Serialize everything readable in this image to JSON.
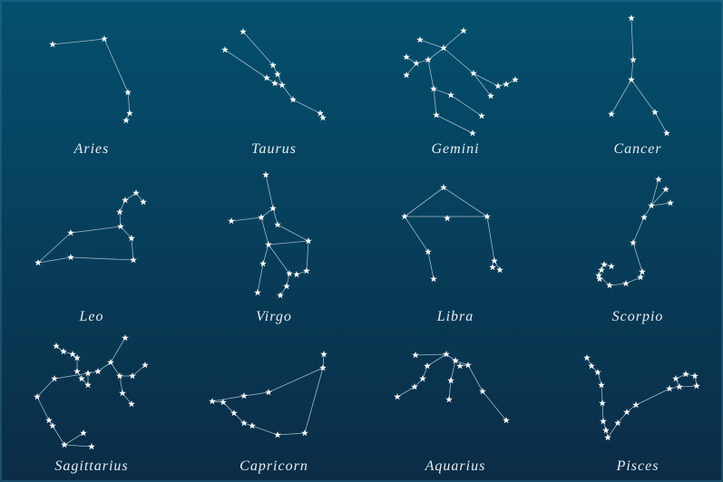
{
  "constellations": [
    {
      "name": "Aries"
    },
    {
      "name": "Taurus"
    },
    {
      "name": "Gemini"
    },
    {
      "name": "Cancer"
    },
    {
      "name": "Leo"
    },
    {
      "name": "Virgo"
    },
    {
      "name": "Libra"
    },
    {
      "name": "Scorpio"
    },
    {
      "name": "Sagittarius"
    },
    {
      "name": "Capricorn"
    },
    {
      "name": "Aquarius"
    },
    {
      "name": "Pisces"
    }
  ]
}
